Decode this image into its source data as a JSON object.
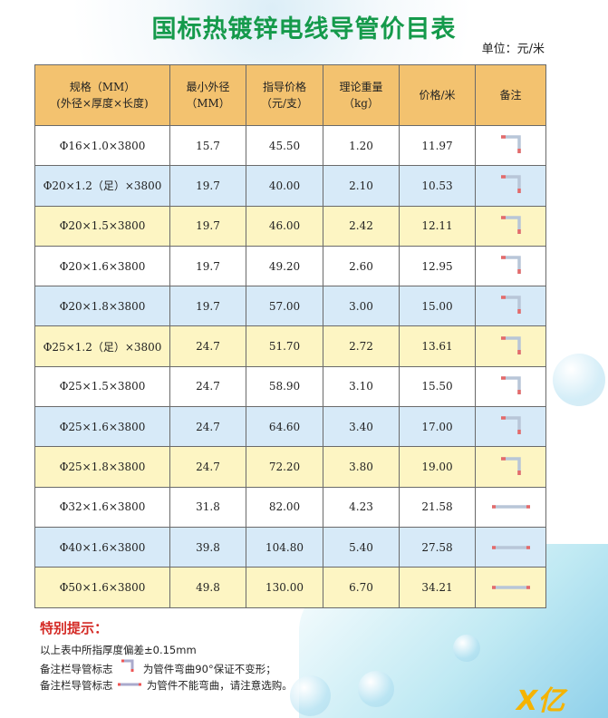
{
  "title": "国标热镀锌电线导管价目表",
  "unit": "单位：元/米",
  "headers": [
    [
      "规格（MM）",
      "(外径×厚度×长度)"
    ],
    [
      "最小外径",
      "（MM）"
    ],
    [
      "指导价格",
      "（元/支）"
    ],
    [
      "理论重量",
      "（kg）"
    ],
    [
      "价格/米",
      ""
    ],
    [
      "备注",
      ""
    ]
  ],
  "rows": [
    {
      "spec": "Φ16×1.0×3800",
      "od": "15.7",
      "price": "45.50",
      "weight": "1.20",
      "per_m": "11.97",
      "note_icon": "bend-pipe-icon",
      "color": "w"
    },
    {
      "spec": "Φ20×1.2（足）×3800",
      "od": "19.7",
      "price": "40.00",
      "weight": "2.10",
      "per_m": "10.53",
      "note_icon": "bend-pipe-icon",
      "color": "b"
    },
    {
      "spec": "Φ20×1.5×3800",
      "od": "19.7",
      "price": "46.00",
      "weight": "2.42",
      "per_m": "12.11",
      "note_icon": "bend-pipe-icon",
      "color": "y"
    },
    {
      "spec": "Φ20×1.6×3800",
      "od": "19.7",
      "price": "49.20",
      "weight": "2.60",
      "per_m": "12.95",
      "note_icon": "bend-pipe-icon",
      "color": "w"
    },
    {
      "spec": "Φ20×1.8×3800",
      "od": "19.7",
      "price": "57.00",
      "weight": "3.00",
      "per_m": "15.00",
      "note_icon": "bend-pipe-icon",
      "color": "b"
    },
    {
      "spec": "Φ25×1.2（足）×3800",
      "od": "24.7",
      "price": "51.70",
      "weight": "2.72",
      "per_m": "13.61",
      "note_icon": "bend-pipe-icon",
      "color": "y"
    },
    {
      "spec": "Φ25×1.5×3800",
      "od": "24.7",
      "price": "58.90",
      "weight": "3.10",
      "per_m": "15.50",
      "note_icon": "bend-pipe-icon",
      "color": "w"
    },
    {
      "spec": "Φ25×1.6×3800",
      "od": "24.7",
      "price": "64.60",
      "weight": "3.40",
      "per_m": "17.00",
      "note_icon": "bend-pipe-icon",
      "color": "b"
    },
    {
      "spec": "Φ25×1.8×3800",
      "od": "24.7",
      "price": "72.20",
      "weight": "3.80",
      "per_m": "19.00",
      "note_icon": "bend-pipe-icon",
      "color": "y"
    },
    {
      "spec": "Φ32×1.6×3800",
      "od": "31.8",
      "price": "82.00",
      "weight": "4.23",
      "per_m": "21.58",
      "note_icon": "straight-pipe-icon",
      "color": "w"
    },
    {
      "spec": "Φ40×1.6×3800",
      "od": "39.8",
      "price": "104.80",
      "weight": "5.40",
      "per_m": "27.58",
      "note_icon": "straight-pipe-icon",
      "color": "b"
    },
    {
      "spec": "Φ50×1.6×3800",
      "od": "49.8",
      "price": "130.00",
      "weight": "6.70",
      "per_m": "34.21",
      "note_icon": "straight-pipe-icon",
      "color": "y"
    }
  ],
  "notes": {
    "title": "特别提示：",
    "line1": "以上表中所指厚度偏差±0.15mm",
    "line2a": "备注栏导管标志",
    "line2b": "为管件弯曲90°保证不变形；",
    "line3a": "备注栏导管标志",
    "line3b": "为管件不能弯曲，请注意选购。"
  },
  "logo": "亿"
}
